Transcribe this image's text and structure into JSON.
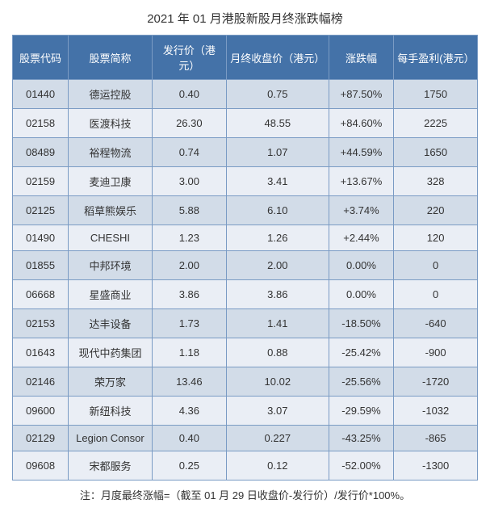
{
  "title": "2021 年 01 月港股新股月终涨跌幅榜",
  "footnote": "注：月度最终涨幅=（截至 01 月 29 日收盘价-发行价）/发行价*100%。",
  "table": {
    "columns": [
      "股票代码",
      "股票简称",
      "发行价（港元）",
      "月终收盘价（港元）",
      "涨跌幅",
      "每手盈利(港元）"
    ],
    "rows": [
      [
        "01440",
        "德运控股",
        "0.40",
        "0.75",
        "+87.50%",
        "1750"
      ],
      [
        "02158",
        "医渡科技",
        "26.30",
        "48.55",
        "+84.60%",
        "2225"
      ],
      [
        "08489",
        "裕程物流",
        "0.74",
        "1.07",
        "+44.59%",
        "1650"
      ],
      [
        "02159",
        "麦迪卫康",
        "3.00",
        "3.41",
        "+13.67%",
        "328"
      ],
      [
        "02125",
        "稻草熊娱乐",
        "5.88",
        "6.10",
        "+3.74%",
        "220"
      ],
      [
        "01490",
        "CHESHI",
        "1.23",
        "1.26",
        "+2.44%",
        "120"
      ],
      [
        "01855",
        "中邦环境",
        "2.00",
        "2.00",
        "0.00%",
        "0"
      ],
      [
        "06668",
        "星盛商业",
        "3.86",
        "3.86",
        "0.00%",
        "0"
      ],
      [
        "02153",
        "达丰设备",
        "1.73",
        "1.41",
        "-18.50%",
        "-640"
      ],
      [
        "01643",
        "现代中药集团",
        "1.18",
        "0.88",
        "-25.42%",
        "-900"
      ],
      [
        "02146",
        "荣万家",
        "13.46",
        "10.02",
        "-25.56%",
        "-1720"
      ],
      [
        "09600",
        "新纽科技",
        "4.36",
        "3.07",
        "-29.59%",
        "-1032"
      ],
      [
        "02129",
        "Legion Consor",
        "0.40",
        "0.227",
        "-43.25%",
        "-865"
      ],
      [
        "09608",
        "宋都服务",
        "0.25",
        "0.12",
        "-52.00%",
        "-1300"
      ]
    ],
    "header_bg": "#4472a8",
    "header_fg": "#ffffff",
    "row_odd_bg": "#d2dce8",
    "row_even_bg": "#eaeef5",
    "border_color": "#7a9bc4",
    "text_color": "#333333",
    "title_fontsize": 15,
    "cell_fontsize": 13
  }
}
